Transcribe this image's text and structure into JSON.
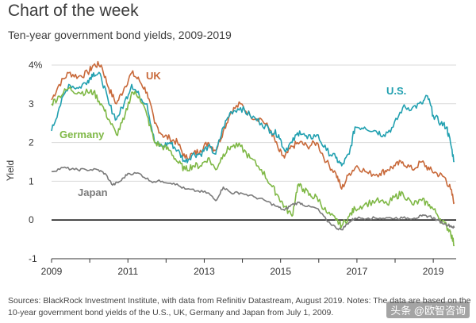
{
  "header": {
    "title": "Chart of the week",
    "subtitle": "Ten-year government bond yields, 2009-2019"
  },
  "footer": {
    "source": "Sources: BlackRock Investment Institute, with data from Refinitiv Datastream, August 2019. Notes: The data are based on the 10-year government bond yields of the U.S., UK, Germany and Japan from July 1, 2009.",
    "watermark": "头条 @欧智咨询"
  },
  "chart_data": {
    "type": "line",
    "title": "Chart of the week",
    "subtitle": "Ten-year government bond yields, 2009-2019",
    "ylabel": "Yield",
    "xlabel": "",
    "xlim": [
      2009,
      2019.6
    ],
    "ylim": [
      -1,
      4
    ],
    "xticks": [
      "2009",
      "2011",
      "2013",
      "2015",
      "2017",
      "2019"
    ],
    "yticks": [
      "4%",
      "3",
      "2",
      "1",
      "0",
      "-1"
    ],
    "grid": "horizontal",
    "legend": "inline labels",
    "series": [
      {
        "name": "UK",
        "color": "#c8693a",
        "points": [
          [
            2009.0,
            3.1
          ],
          [
            2009.2,
            3.5
          ],
          [
            2009.45,
            3.8
          ],
          [
            2009.7,
            3.7
          ],
          [
            2009.95,
            3.8
          ],
          [
            2010.1,
            4.0
          ],
          [
            2010.3,
            4.0
          ],
          [
            2010.5,
            3.4
          ],
          [
            2010.7,
            3.0
          ],
          [
            2010.9,
            3.4
          ],
          [
            2011.1,
            3.8
          ],
          [
            2011.3,
            3.6
          ],
          [
            2011.5,
            3.3
          ],
          [
            2011.7,
            2.5
          ],
          [
            2011.9,
            2.2
          ],
          [
            2012.1,
            2.1
          ],
          [
            2012.3,
            2.0
          ],
          [
            2012.5,
            1.6
          ],
          [
            2012.7,
            1.7
          ],
          [
            2012.9,
            1.8
          ],
          [
            2013.1,
            2.0
          ],
          [
            2013.3,
            1.8
          ],
          [
            2013.5,
            2.3
          ],
          [
            2013.7,
            2.8
          ],
          [
            2013.95,
            3.0
          ],
          [
            2014.2,
            2.7
          ],
          [
            2014.5,
            2.6
          ],
          [
            2014.75,
            2.3
          ],
          [
            2014.95,
            1.8
          ],
          [
            2015.1,
            1.6
          ],
          [
            2015.3,
            1.9
          ],
          [
            2015.5,
            2.0
          ],
          [
            2015.7,
            1.9
          ],
          [
            2015.95,
            2.0
          ],
          [
            2016.2,
            1.5
          ],
          [
            2016.45,
            1.2
          ],
          [
            2016.6,
            0.8
          ],
          [
            2016.8,
            1.2
          ],
          [
            2017.0,
            1.4
          ],
          [
            2017.3,
            1.2
          ],
          [
            2017.6,
            1.2
          ],
          [
            2017.8,
            1.3
          ],
          [
            2018.0,
            1.4
          ],
          [
            2018.2,
            1.5
          ],
          [
            2018.45,
            1.3
          ],
          [
            2018.7,
            1.5
          ],
          [
            2018.9,
            1.3
          ],
          [
            2019.1,
            1.2
          ],
          [
            2019.3,
            1.1
          ],
          [
            2019.45,
            0.8
          ],
          [
            2019.55,
            0.45
          ]
        ]
      },
      {
        "name": "U.S.",
        "color": "#21a0b0",
        "points": [
          [
            2009.0,
            2.3
          ],
          [
            2009.2,
            2.9
          ],
          [
            2009.45,
            3.5
          ],
          [
            2009.7,
            3.4
          ],
          [
            2009.95,
            3.6
          ],
          [
            2010.1,
            3.8
          ],
          [
            2010.3,
            3.7
          ],
          [
            2010.5,
            3.0
          ],
          [
            2010.7,
            2.6
          ],
          [
            2010.9,
            3.0
          ],
          [
            2011.1,
            3.5
          ],
          [
            2011.3,
            3.2
          ],
          [
            2011.5,
            3.0
          ],
          [
            2011.7,
            2.0
          ],
          [
            2011.9,
            1.9
          ],
          [
            2012.1,
            2.0
          ],
          [
            2012.3,
            1.8
          ],
          [
            2012.5,
            1.5
          ],
          [
            2012.7,
            1.7
          ],
          [
            2012.9,
            1.7
          ],
          [
            2013.1,
            1.9
          ],
          [
            2013.3,
            1.7
          ],
          [
            2013.5,
            2.4
          ],
          [
            2013.7,
            2.8
          ],
          [
            2013.95,
            2.9
          ],
          [
            2014.2,
            2.7
          ],
          [
            2014.5,
            2.5
          ],
          [
            2014.75,
            2.3
          ],
          [
            2014.95,
            2.2
          ],
          [
            2015.1,
            1.8
          ],
          [
            2015.3,
            2.0
          ],
          [
            2015.5,
            2.3
          ],
          [
            2015.7,
            2.1
          ],
          [
            2015.95,
            2.2
          ],
          [
            2016.2,
            1.8
          ],
          [
            2016.45,
            1.6
          ],
          [
            2016.6,
            1.4
          ],
          [
            2016.8,
            1.7
          ],
          [
            2016.95,
            2.4
          ],
          [
            2017.2,
            2.4
          ],
          [
            2017.5,
            2.3
          ],
          [
            2017.7,
            2.2
          ],
          [
            2017.95,
            2.4
          ],
          [
            2018.2,
            2.9
          ],
          [
            2018.45,
            2.9
          ],
          [
            2018.7,
            3.0
          ],
          [
            2018.85,
            3.2
          ],
          [
            2019.0,
            2.7
          ],
          [
            2019.2,
            2.5
          ],
          [
            2019.35,
            2.4
          ],
          [
            2019.45,
            2.0
          ],
          [
            2019.55,
            1.5
          ]
        ]
      },
      {
        "name": "Germany",
        "color": "#7fb846",
        "points": [
          [
            2009.0,
            3.0
          ],
          [
            2009.2,
            3.2
          ],
          [
            2009.45,
            3.4
          ],
          [
            2009.7,
            3.3
          ],
          [
            2009.95,
            3.3
          ],
          [
            2010.1,
            3.3
          ],
          [
            2010.3,
            3.0
          ],
          [
            2010.5,
            2.6
          ],
          [
            2010.7,
            2.2
          ],
          [
            2010.9,
            2.6
          ],
          [
            2011.1,
            3.3
          ],
          [
            2011.3,
            3.2
          ],
          [
            2011.5,
            2.7
          ],
          [
            2011.7,
            2.0
          ],
          [
            2011.9,
            1.9
          ],
          [
            2012.1,
            1.8
          ],
          [
            2012.3,
            1.5
          ],
          [
            2012.5,
            1.3
          ],
          [
            2012.7,
            1.4
          ],
          [
            2012.9,
            1.4
          ],
          [
            2013.1,
            1.6
          ],
          [
            2013.3,
            1.3
          ],
          [
            2013.5,
            1.7
          ],
          [
            2013.7,
            1.9
          ],
          [
            2013.95,
            1.9
          ],
          [
            2014.2,
            1.6
          ],
          [
            2014.5,
            1.3
          ],
          [
            2014.75,
            0.9
          ],
          [
            2014.95,
            0.6
          ],
          [
            2015.1,
            0.35
          ],
          [
            2015.3,
            0.1
          ],
          [
            2015.45,
            0.9
          ],
          [
            2015.6,
            0.8
          ],
          [
            2015.8,
            0.6
          ],
          [
            2015.95,
            0.6
          ],
          [
            2016.2,
            0.2
          ],
          [
            2016.45,
            0.0
          ],
          [
            2016.6,
            -0.15
          ],
          [
            2016.8,
            0.1
          ],
          [
            2016.95,
            0.3
          ],
          [
            2017.2,
            0.4
          ],
          [
            2017.5,
            0.5
          ],
          [
            2017.8,
            0.4
          ],
          [
            2018.0,
            0.6
          ],
          [
            2018.2,
            0.7
          ],
          [
            2018.45,
            0.4
          ],
          [
            2018.7,
            0.5
          ],
          [
            2018.9,
            0.4
          ],
          [
            2019.1,
            0.15
          ],
          [
            2019.3,
            -0.1
          ],
          [
            2019.45,
            -0.3
          ],
          [
            2019.55,
            -0.65
          ]
        ]
      },
      {
        "name": "Japan",
        "color": "#7a7a7a",
        "points": [
          [
            2009.0,
            1.25
          ],
          [
            2009.3,
            1.35
          ],
          [
            2009.6,
            1.3
          ],
          [
            2009.9,
            1.3
          ],
          [
            2010.2,
            1.3
          ],
          [
            2010.4,
            1.2
          ],
          [
            2010.6,
            0.9
          ],
          [
            2010.8,
            1.0
          ],
          [
            2011.0,
            1.2
          ],
          [
            2011.3,
            1.2
          ],
          [
            2011.6,
            1.0
          ],
          [
            2011.9,
            1.0
          ],
          [
            2012.2,
            0.95
          ],
          [
            2012.5,
            0.8
          ],
          [
            2012.8,
            0.75
          ],
          [
            2013.1,
            0.7
          ],
          [
            2013.3,
            0.5
          ],
          [
            2013.5,
            0.85
          ],
          [
            2013.7,
            0.7
          ],
          [
            2013.95,
            0.7
          ],
          [
            2014.3,
            0.6
          ],
          [
            2014.6,
            0.5
          ],
          [
            2014.9,
            0.35
          ],
          [
            2015.1,
            0.25
          ],
          [
            2015.3,
            0.4
          ],
          [
            2015.5,
            0.45
          ],
          [
            2015.7,
            0.35
          ],
          [
            2015.95,
            0.3
          ],
          [
            2016.2,
            0.0
          ],
          [
            2016.45,
            -0.2
          ],
          [
            2016.6,
            -0.25
          ],
          [
            2016.8,
            -0.05
          ],
          [
            2016.95,
            0.05
          ],
          [
            2017.3,
            0.05
          ],
          [
            2017.6,
            0.05
          ],
          [
            2017.9,
            0.05
          ],
          [
            2018.2,
            0.05
          ],
          [
            2018.5,
            0.05
          ],
          [
            2018.7,
            0.1
          ],
          [
            2018.9,
            0.1
          ],
          [
            2019.1,
            0.0
          ],
          [
            2019.3,
            -0.1
          ],
          [
            2019.45,
            -0.15
          ],
          [
            2019.55,
            -0.2
          ]
        ]
      }
    ]
  }
}
